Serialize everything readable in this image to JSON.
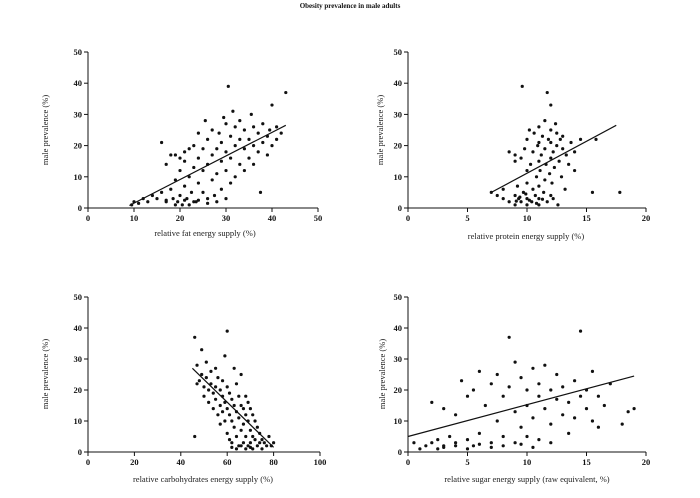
{
  "figure": {
    "title": "Obesity prevalence in male adults"
  },
  "chart_data": [
    {
      "type": "scatter",
      "xlabel": "relative fat energy supply (%)",
      "ylabel": "male prevalence  (%)",
      "xlim": [
        0,
        50
      ],
      "ylim": [
        0,
        50
      ],
      "xticks": [
        0,
        10,
        20,
        30,
        40,
        50
      ],
      "yticks": [
        0,
        10,
        20,
        30,
        40,
        50
      ],
      "trendline": {
        "x": [
          9,
          43
        ],
        "y": [
          0.8,
          26.5
        ]
      },
      "points": [
        [
          9.5,
          1
        ],
        [
          10,
          2
        ],
        [
          11,
          1.5
        ],
        [
          12,
          3
        ],
        [
          13,
          2
        ],
        [
          14,
          4
        ],
        [
          15,
          3
        ],
        [
          16,
          5
        ],
        [
          16,
          21
        ],
        [
          17,
          2
        ],
        [
          17,
          14
        ],
        [
          18,
          6
        ],
        [
          18,
          17
        ],
        [
          18.5,
          3
        ],
        [
          19,
          9
        ],
        [
          19,
          17
        ],
        [
          19.5,
          2
        ],
        [
          20,
          4
        ],
        [
          20,
          12
        ],
        [
          20,
          16
        ],
        [
          20.5,
          1
        ],
        [
          21,
          7
        ],
        [
          21,
          15
        ],
        [
          21,
          18
        ],
        [
          21.5,
          3
        ],
        [
          22,
          10
        ],
        [
          22,
          19
        ],
        [
          22.5,
          5
        ],
        [
          23,
          13
        ],
        [
          23,
          20
        ],
        [
          23.5,
          2
        ],
        [
          24,
          8
        ],
        [
          24,
          16
        ],
        [
          24,
          24
        ],
        [
          25,
          5
        ],
        [
          25,
          12
        ],
        [
          25,
          19
        ],
        [
          25.5,
          28
        ],
        [
          26,
          3
        ],
        [
          26,
          14
        ],
        [
          26,
          22
        ],
        [
          27,
          9
        ],
        [
          27,
          17
        ],
        [
          27,
          25
        ],
        [
          27.5,
          4
        ],
        [
          28,
          11
        ],
        [
          28,
          19
        ],
        [
          28.5,
          24
        ],
        [
          29,
          6
        ],
        [
          29,
          15
        ],
        [
          29,
          21
        ],
        [
          29.5,
          29
        ],
        [
          30,
          3
        ],
        [
          30,
          12
        ],
        [
          30,
          18
        ],
        [
          30,
          27
        ],
        [
          30.5,
          39
        ],
        [
          31,
          8
        ],
        [
          31,
          16
        ],
        [
          31,
          23
        ],
        [
          31.5,
          31
        ],
        [
          32,
          10
        ],
        [
          32,
          20
        ],
        [
          32,
          26
        ],
        [
          33,
          14
        ],
        [
          33,
          22
        ],
        [
          33,
          28
        ],
        [
          34,
          12
        ],
        [
          34,
          19
        ],
        [
          34,
          25
        ],
        [
          35,
          16
        ],
        [
          35,
          22
        ],
        [
          35.5,
          30
        ],
        [
          36,
          14
        ],
        [
          36,
          20
        ],
        [
          36,
          26
        ],
        [
          37,
          18
        ],
        [
          37,
          24
        ],
        [
          37.5,
          5
        ],
        [
          38,
          21
        ],
        [
          38,
          27
        ],
        [
          39,
          17
        ],
        [
          39,
          23
        ],
        [
          39.5,
          25
        ],
        [
          40,
          20
        ],
        [
          40,
          33
        ],
        [
          41,
          22
        ],
        [
          41,
          26
        ],
        [
          42,
          24
        ],
        [
          43,
          37
        ],
        [
          22,
          1
        ],
        [
          23,
          2
        ],
        [
          24,
          2.5
        ],
        [
          26,
          1.5
        ],
        [
          28,
          2
        ],
        [
          19,
          1
        ],
        [
          21,
          2.5
        ],
        [
          17,
          2.5
        ]
      ]
    },
    {
      "type": "scatter",
      "xlabel": "relative  protein energy supply (%)",
      "ylabel": "male prevalence  (%)",
      "xlim": [
        0,
        20
      ],
      "ylim": [
        0,
        50
      ],
      "xticks": [
        0,
        5,
        10,
        15,
        20
      ],
      "yticks": [
        0,
        10,
        20,
        30,
        40,
        50
      ],
      "trendline": {
        "x": [
          7,
          17.5
        ],
        "y": [
          5,
          26.5
        ]
      },
      "points": [
        [
          7,
          5
        ],
        [
          7.5,
          4
        ],
        [
          8,
          6
        ],
        [
          8,
          3
        ],
        [
          8.5,
          2
        ],
        [
          8.5,
          18
        ],
        [
          9,
          1
        ],
        [
          9,
          4
        ],
        [
          9,
          15
        ],
        [
          9,
          17
        ],
        [
          9.2,
          7
        ],
        [
          9.3,
          3
        ],
        [
          9.5,
          2
        ],
        [
          9.5,
          16
        ],
        [
          9.6,
          39
        ],
        [
          9.7,
          5
        ],
        [
          9.8,
          19
        ],
        [
          10,
          1
        ],
        [
          10,
          3
        ],
        [
          10,
          8
        ],
        [
          10,
          12
        ],
        [
          10,
          22
        ],
        [
          10.2,
          25
        ],
        [
          10.3,
          14
        ],
        [
          10.4,
          2
        ],
        [
          10.5,
          6
        ],
        [
          10.5,
          18
        ],
        [
          10.6,
          24
        ],
        [
          10.7,
          4
        ],
        [
          10.8,
          10
        ],
        [
          10.9,
          20
        ],
        [
          11,
          1
        ],
        [
          11,
          3
        ],
        [
          11,
          7
        ],
        [
          11,
          15
        ],
        [
          11,
          21
        ],
        [
          11,
          26
        ],
        [
          11.1,
          12
        ],
        [
          11.2,
          17
        ],
        [
          11.3,
          23
        ],
        [
          11.4,
          5
        ],
        [
          11.5,
          9
        ],
        [
          11.5,
          19
        ],
        [
          11.5,
          28
        ],
        [
          11.6,
          14
        ],
        [
          11.7,
          2
        ],
        [
          11.7,
          37
        ],
        [
          11.8,
          22
        ],
        [
          11.9,
          11
        ],
        [
          12,
          4
        ],
        [
          12,
          16
        ],
        [
          12,
          21
        ],
        [
          12,
          25
        ],
        [
          12,
          33
        ],
        [
          12.1,
          8
        ],
        [
          12.2,
          18
        ],
        [
          12.3,
          13
        ],
        [
          12.4,
          27
        ],
        [
          12.5,
          20
        ],
        [
          12.5,
          24
        ],
        [
          12.6,
          1
        ],
        [
          12.7,
          15
        ],
        [
          12.8,
          22
        ],
        [
          12.9,
          10
        ],
        [
          13,
          19
        ],
        [
          13,
          23
        ],
        [
          13.2,
          6
        ],
        [
          13.3,
          17
        ],
        [
          13.5,
          14
        ],
        [
          13.7,
          21
        ],
        [
          14,
          12
        ],
        [
          14,
          18
        ],
        [
          14.5,
          22
        ],
        [
          15.5,
          5
        ],
        [
          15.8,
          22
        ],
        [
          17.8,
          5
        ],
        [
          9.4,
          3.5
        ],
        [
          10.2,
          2.5
        ],
        [
          10.8,
          1.5
        ],
        [
          11.3,
          2.8
        ],
        [
          9.9,
          4.5
        ],
        [
          12.2,
          3
        ],
        [
          9.1,
          2.2
        ]
      ]
    },
    {
      "type": "scatter",
      "xlabel": "relative carbohydrates  energy supply (%)",
      "ylabel": "male prevalence (%)",
      "xlim": [
        0,
        100
      ],
      "ylim": [
        0,
        50
      ],
      "xticks": [
        0,
        20,
        40,
        60,
        80,
        100
      ],
      "yticks": [
        0,
        10,
        20,
        30,
        40,
        50
      ],
      "trendline": {
        "x": [
          45,
          80
        ],
        "y": [
          27,
          1.5
        ]
      },
      "points": [
        [
          46,
          37
        ],
        [
          46,
          5
        ],
        [
          47,
          28
        ],
        [
          47,
          22
        ],
        [
          48,
          23
        ],
        [
          49,
          33
        ],
        [
          49,
          25
        ],
        [
          50,
          21
        ],
        [
          50,
          18
        ],
        [
          51,
          29
        ],
        [
          51,
          24
        ],
        [
          52,
          20
        ],
        [
          52,
          16
        ],
        [
          53,
          26
        ],
        [
          53,
          22
        ],
        [
          54,
          19
        ],
        [
          54,
          14
        ],
        [
          55,
          27
        ],
        [
          55,
          21
        ],
        [
          55,
          17
        ],
        [
          56,
          24
        ],
        [
          56,
          12
        ],
        [
          57,
          20
        ],
        [
          57,
          15
        ],
        [
          57,
          9
        ],
        [
          58,
          23
        ],
        [
          58,
          18
        ],
        [
          58,
          13
        ],
        [
          59,
          31
        ],
        [
          59,
          16
        ],
        [
          59,
          10
        ],
        [
          60,
          39
        ],
        [
          60,
          21
        ],
        [
          60,
          14
        ],
        [
          60,
          6
        ],
        [
          61,
          19
        ],
        [
          61,
          12
        ],
        [
          61,
          4
        ],
        [
          62,
          17
        ],
        [
          62,
          10
        ],
        [
          62,
          3
        ],
        [
          63,
          27
        ],
        [
          63,
          15
        ],
        [
          63,
          8
        ],
        [
          64,
          22
        ],
        [
          64,
          13
        ],
        [
          64,
          5
        ],
        [
          65,
          18
        ],
        [
          65,
          11
        ],
        [
          65,
          2
        ],
        [
          66,
          25
        ],
        [
          66,
          15
        ],
        [
          66,
          7
        ],
        [
          67,
          14
        ],
        [
          67,
          9
        ],
        [
          67,
          3
        ],
        [
          68,
          18
        ],
        [
          68,
          12
        ],
        [
          68,
          5
        ],
        [
          69,
          16
        ],
        [
          69,
          10
        ],
        [
          69,
          2
        ],
        [
          70,
          14
        ],
        [
          70,
          7
        ],
        [
          70,
          3
        ],
        [
          71,
          12
        ],
        [
          71,
          5
        ],
        [
          71,
          1
        ],
        [
          72,
          10
        ],
        [
          72,
          4
        ],
        [
          73,
          8
        ],
        [
          73,
          2
        ],
        [
          74,
          6
        ],
        [
          74,
          3
        ],
        [
          75,
          4
        ],
        [
          75,
          1
        ],
        [
          76,
          3
        ],
        [
          77,
          2
        ],
        [
          78,
          5
        ],
        [
          79,
          2
        ],
        [
          80,
          3
        ],
        [
          62,
          1.5
        ],
        [
          64,
          1
        ],
        [
          66,
          2
        ],
        [
          68,
          1
        ],
        [
          70,
          1.5
        ]
      ]
    },
    {
      "type": "scatter",
      "xlabel": "relative sugar energy supply (raw equivalent, %)",
      "ylabel": "male prevalence (%)",
      "xlim": [
        0,
        20
      ],
      "ylim": [
        0,
        50
      ],
      "xticks": [
        0,
        5,
        10,
        15,
        20
      ],
      "yticks": [
        0,
        10,
        20,
        30,
        40,
        50
      ],
      "trendline": {
        "x": [
          0,
          19
        ],
        "y": [
          5,
          24.5
        ]
      },
      "points": [
        [
          0.5,
          3
        ],
        [
          1,
          1
        ],
        [
          1.5,
          2
        ],
        [
          2,
          16
        ],
        [
          2,
          3
        ],
        [
          2.5,
          4
        ],
        [
          3,
          2
        ],
        [
          3,
          14
        ],
        [
          3.5,
          5
        ],
        [
          4,
          3
        ],
        [
          4,
          12
        ],
        [
          4.5,
          23
        ],
        [
          5,
          4
        ],
        [
          5,
          18
        ],
        [
          5.5,
          2
        ],
        [
          5.5,
          20
        ],
        [
          6,
          6
        ],
        [
          6,
          26
        ],
        [
          6.5,
          15
        ],
        [
          7,
          3
        ],
        [
          7,
          22
        ],
        [
          7.5,
          10
        ],
        [
          7.5,
          25
        ],
        [
          8,
          18
        ],
        [
          8,
          5
        ],
        [
          8.5,
          37
        ],
        [
          8.5,
          21
        ],
        [
          9,
          13
        ],
        [
          9,
          29
        ],
        [
          9,
          3
        ],
        [
          9.5,
          24
        ],
        [
          9.5,
          8
        ],
        [
          10,
          20
        ],
        [
          10,
          15
        ],
        [
          10,
          5
        ],
        [
          10.5,
          27
        ],
        [
          10.5,
          11
        ],
        [
          11,
          18
        ],
        [
          11,
          22
        ],
        [
          11,
          4
        ],
        [
          11.5,
          14
        ],
        [
          11.5,
          28
        ],
        [
          12,
          20
        ],
        [
          12,
          9
        ],
        [
          12,
          3
        ],
        [
          12.5,
          17
        ],
        [
          12.5,
          25
        ],
        [
          13,
          12
        ],
        [
          13,
          21
        ],
        [
          13.5,
          16
        ],
        [
          13.5,
          6
        ],
        [
          14,
          23
        ],
        [
          14,
          11
        ],
        [
          14.5,
          39
        ],
        [
          14.5,
          18
        ],
        [
          15,
          20
        ],
        [
          15,
          14
        ],
        [
          15.5,
          26
        ],
        [
          15.5,
          10
        ],
        [
          16,
          18
        ],
        [
          16,
          8
        ],
        [
          16.5,
          15
        ],
        [
          17,
          22
        ],
        [
          18,
          9
        ],
        [
          18.5,
          13
        ],
        [
          19,
          14
        ],
        [
          3,
          1.5
        ],
        [
          4,
          2
        ],
        [
          6,
          2.5
        ],
        [
          7,
          1.5
        ],
        [
          8,
          2
        ],
        [
          9.5,
          2.5
        ],
        [
          10.5,
          1.5
        ],
        [
          2.5,
          1
        ],
        [
          5,
          1
        ]
      ]
    }
  ]
}
